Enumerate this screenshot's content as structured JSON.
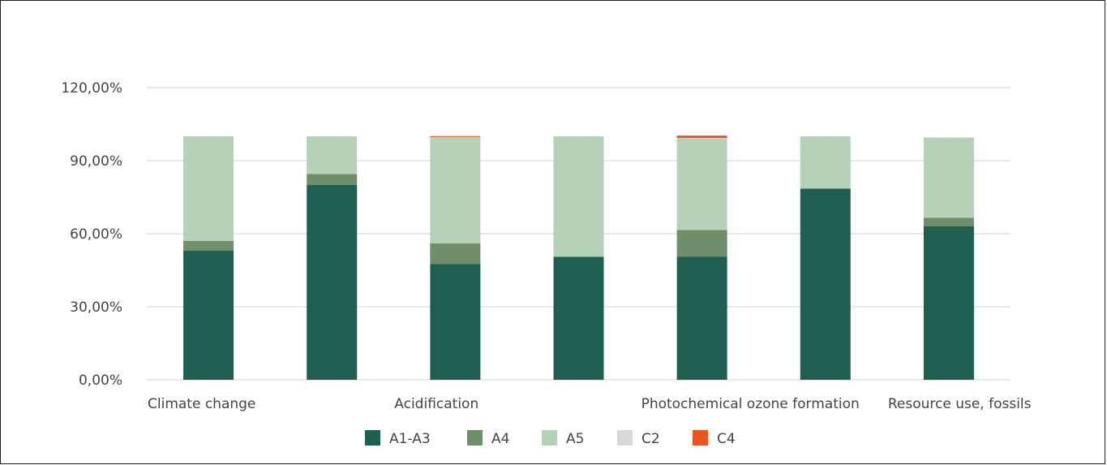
{
  "chart_data": {
    "type": "bar",
    "stacked": true,
    "categories": [
      "Climate change",
      "",
      "Acidification",
      "",
      "Photochemical ozone formation",
      "",
      "Resource use, fossils"
    ],
    "series": [
      {
        "name": "A1-A3",
        "color": "#1f5f52",
        "values": [
          53.0,
          80.0,
          47.5,
          50.5,
          50.5,
          78.5,
          63.0
        ]
      },
      {
        "name": "A4",
        "color": "#6f8f6b",
        "values": [
          4.0,
          4.5,
          8.5,
          0.0,
          11.0,
          0.0,
          3.5
        ]
      },
      {
        "name": "A5",
        "color": "#b5d1b8",
        "values": [
          43.0,
          15.5,
          43.5,
          49.5,
          37.5,
          21.5,
          33.0
        ]
      },
      {
        "name": "C2",
        "color": "#d9d9d9",
        "values": [
          0.0,
          0.0,
          0.2,
          0.0,
          0.3,
          0.0,
          0.0
        ]
      },
      {
        "name": "C4",
        "color": "#e8551e",
        "values": [
          0.0,
          0.0,
          0.4,
          0.0,
          1.0,
          0.0,
          0.0
        ]
      }
    ],
    "y_ticks": [
      "0,00%",
      "30,00%",
      "60,00%",
      "90,00%",
      "120,00%"
    ],
    "ylim": [
      0,
      120
    ],
    "grid": true,
    "legend_position": "bottom"
  }
}
